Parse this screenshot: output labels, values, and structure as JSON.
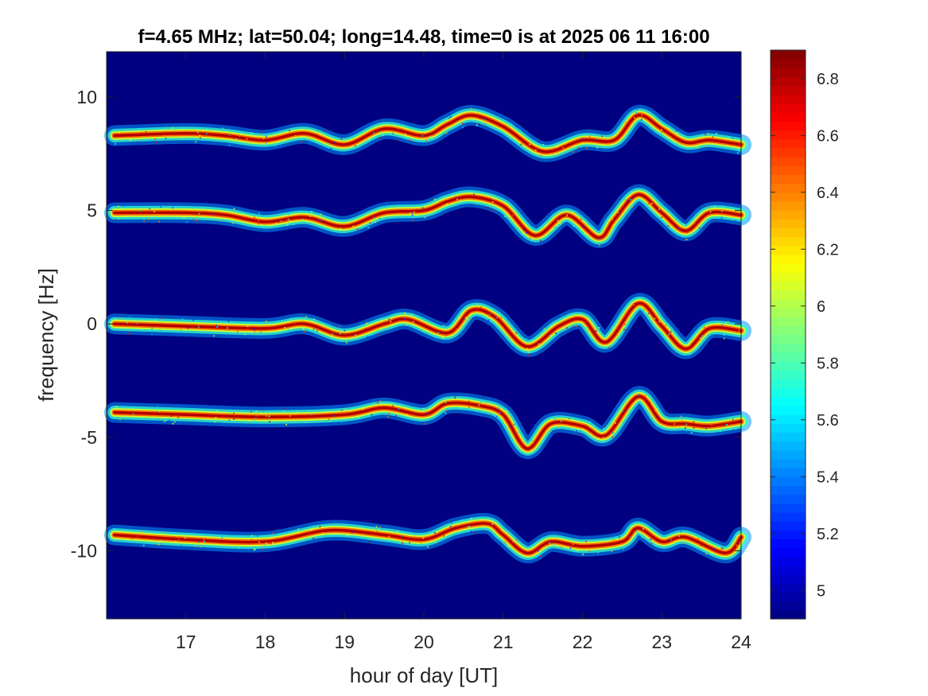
{
  "chart_data": {
    "type": "heatmap",
    "title": "f=4.65 MHz;  lat=50.04; long=14.48, time=0 is at 2025 06 11 16:00",
    "xlabel": "hour of day [UT]",
    "ylabel": "frequency [Hz]",
    "xlim": [
      16,
      24
    ],
    "ylim": [
      -13,
      12
    ],
    "xticks": [
      17,
      18,
      19,
      20,
      21,
      22,
      23,
      24
    ],
    "xtick_labels": [
      "17",
      "18",
      "19",
      "20",
      "21",
      "22",
      "23",
      "24"
    ],
    "yticks": [
      10,
      5,
      0,
      -5,
      -10
    ],
    "ytick_labels": [
      "10",
      "5",
      "0",
      "-5",
      "-10"
    ],
    "colorbar": {
      "colormap": "jet",
      "range": [
        4.9,
        6.9
      ],
      "ticks": [
        6.8,
        6.6,
        6.4,
        6.2,
        6.0,
        5.8,
        5.6,
        5.4,
        5.2,
        5.0
      ],
      "tick_labels": [
        "6.8",
        "6.6",
        "6.4",
        "6.2",
        "6",
        "5.8",
        "5.6",
        "5.4",
        "5.2",
        "5"
      ]
    },
    "background_value": 4.9,
    "traces": [
      {
        "hours": [
          16.1,
          17.0,
          17.5,
          18.0,
          18.5,
          19.0,
          19.5,
          20.0,
          20.3,
          20.6,
          21.0,
          21.5,
          22.0,
          22.4,
          22.7,
          23.0,
          23.3,
          23.6,
          24.0
        ],
        "freq": [
          8.3,
          8.4,
          8.3,
          8.1,
          8.4,
          7.9,
          8.6,
          8.3,
          8.8,
          9.2,
          8.7,
          7.6,
          8.1,
          8.1,
          9.2,
          8.6,
          8.0,
          8.1,
          7.9
        ]
      },
      {
        "hours": [
          16.1,
          17.0,
          17.5,
          18.0,
          18.5,
          19.0,
          19.5,
          20.0,
          20.3,
          20.6,
          21.0,
          21.4,
          21.8,
          22.2,
          22.4,
          22.7,
          23.0,
          23.3,
          23.6,
          24.0
        ],
        "freq": [
          4.9,
          4.9,
          4.8,
          4.5,
          4.7,
          4.3,
          4.9,
          5.0,
          5.4,
          5.6,
          5.2,
          3.9,
          4.8,
          3.8,
          4.6,
          5.7,
          4.9,
          4.1,
          4.9,
          4.8
        ]
      },
      {
        "hours": [
          16.1,
          17.0,
          18.0,
          18.5,
          19.0,
          19.5,
          19.8,
          20.3,
          20.6,
          20.9,
          21.3,
          21.7,
          22.0,
          22.3,
          22.7,
          23.0,
          23.3,
          23.6,
          24.0
        ],
        "freq": [
          0.0,
          -0.1,
          -0.2,
          0.0,
          -0.5,
          0.0,
          0.2,
          -0.4,
          0.6,
          0.3,
          -1.0,
          -0.1,
          0.2,
          -0.8,
          0.9,
          -0.1,
          -1.1,
          -0.2,
          -0.3
        ]
      },
      {
        "hours": [
          16.1,
          17.0,
          18.0,
          19.0,
          19.5,
          20.0,
          20.3,
          20.7,
          21.0,
          21.3,
          21.6,
          22.0,
          22.3,
          22.7,
          23.0,
          23.3,
          23.6,
          24.0
        ],
        "freq": [
          -3.9,
          -4.0,
          -4.1,
          -4.0,
          -3.7,
          -4.0,
          -3.5,
          -3.6,
          -4.0,
          -5.5,
          -4.4,
          -4.5,
          -4.9,
          -3.2,
          -4.3,
          -4.4,
          -4.5,
          -4.3
        ]
      },
      {
        "hours": [
          16.1,
          17.0,
          18.0,
          18.8,
          19.5,
          20.0,
          20.4,
          20.8,
          21.0,
          21.3,
          21.6,
          22.0,
          22.5,
          22.7,
          23.0,
          23.3,
          23.8,
          24.0
        ],
        "freq": [
          -9.3,
          -9.5,
          -9.6,
          -9.1,
          -9.3,
          -9.5,
          -9.0,
          -8.8,
          -9.3,
          -10.1,
          -9.6,
          -9.8,
          -9.6,
          -9.0,
          -9.6,
          -9.4,
          -10.1,
          -9.4
        ]
      }
    ]
  }
}
